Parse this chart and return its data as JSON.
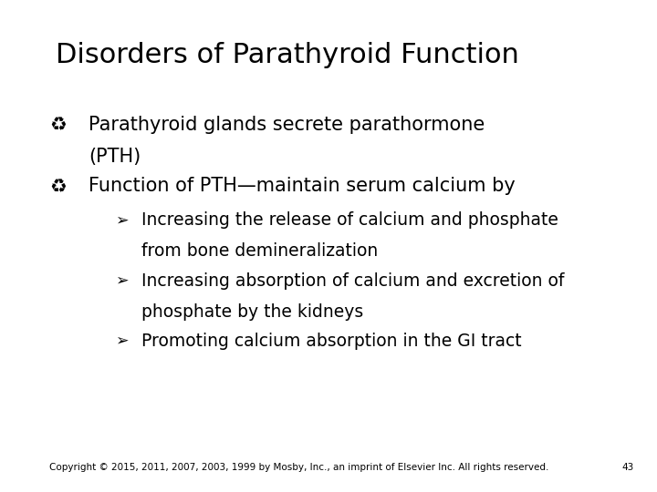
{
  "title": "Disorders of Parathyroid Function",
  "title_fontsize": 22,
  "bg_color": "#ffffff",
  "text_color": "#000000",
  "bullet_symbol": "♻",
  "sub_bullet_symbol": "➢",
  "bullet1_line1": "Parathyroid glands secrete parathormone",
  "bullet1_line2": "(PTH)",
  "bullet2": "Function of PTH—maintain serum calcium by",
  "sub1_line1": "Increasing the release of calcium and phosphate",
  "sub1_line2": "from bone demineralization",
  "sub2_line1": "Increasing absorption of calcium and excretion of",
  "sub2_line2": "phosphate by the kidneys",
  "sub3": "Promoting calcium absorption in the GI tract",
  "footer": "Copyright © 2015, 2011, 2007, 2003, 1999 by Mosby, Inc., an imprint of Elsevier Inc. All rights reserved.",
  "page_num": "43",
  "main_fontsize": 15,
  "sub_fontsize": 13.5,
  "footer_fontsize": 7.5
}
